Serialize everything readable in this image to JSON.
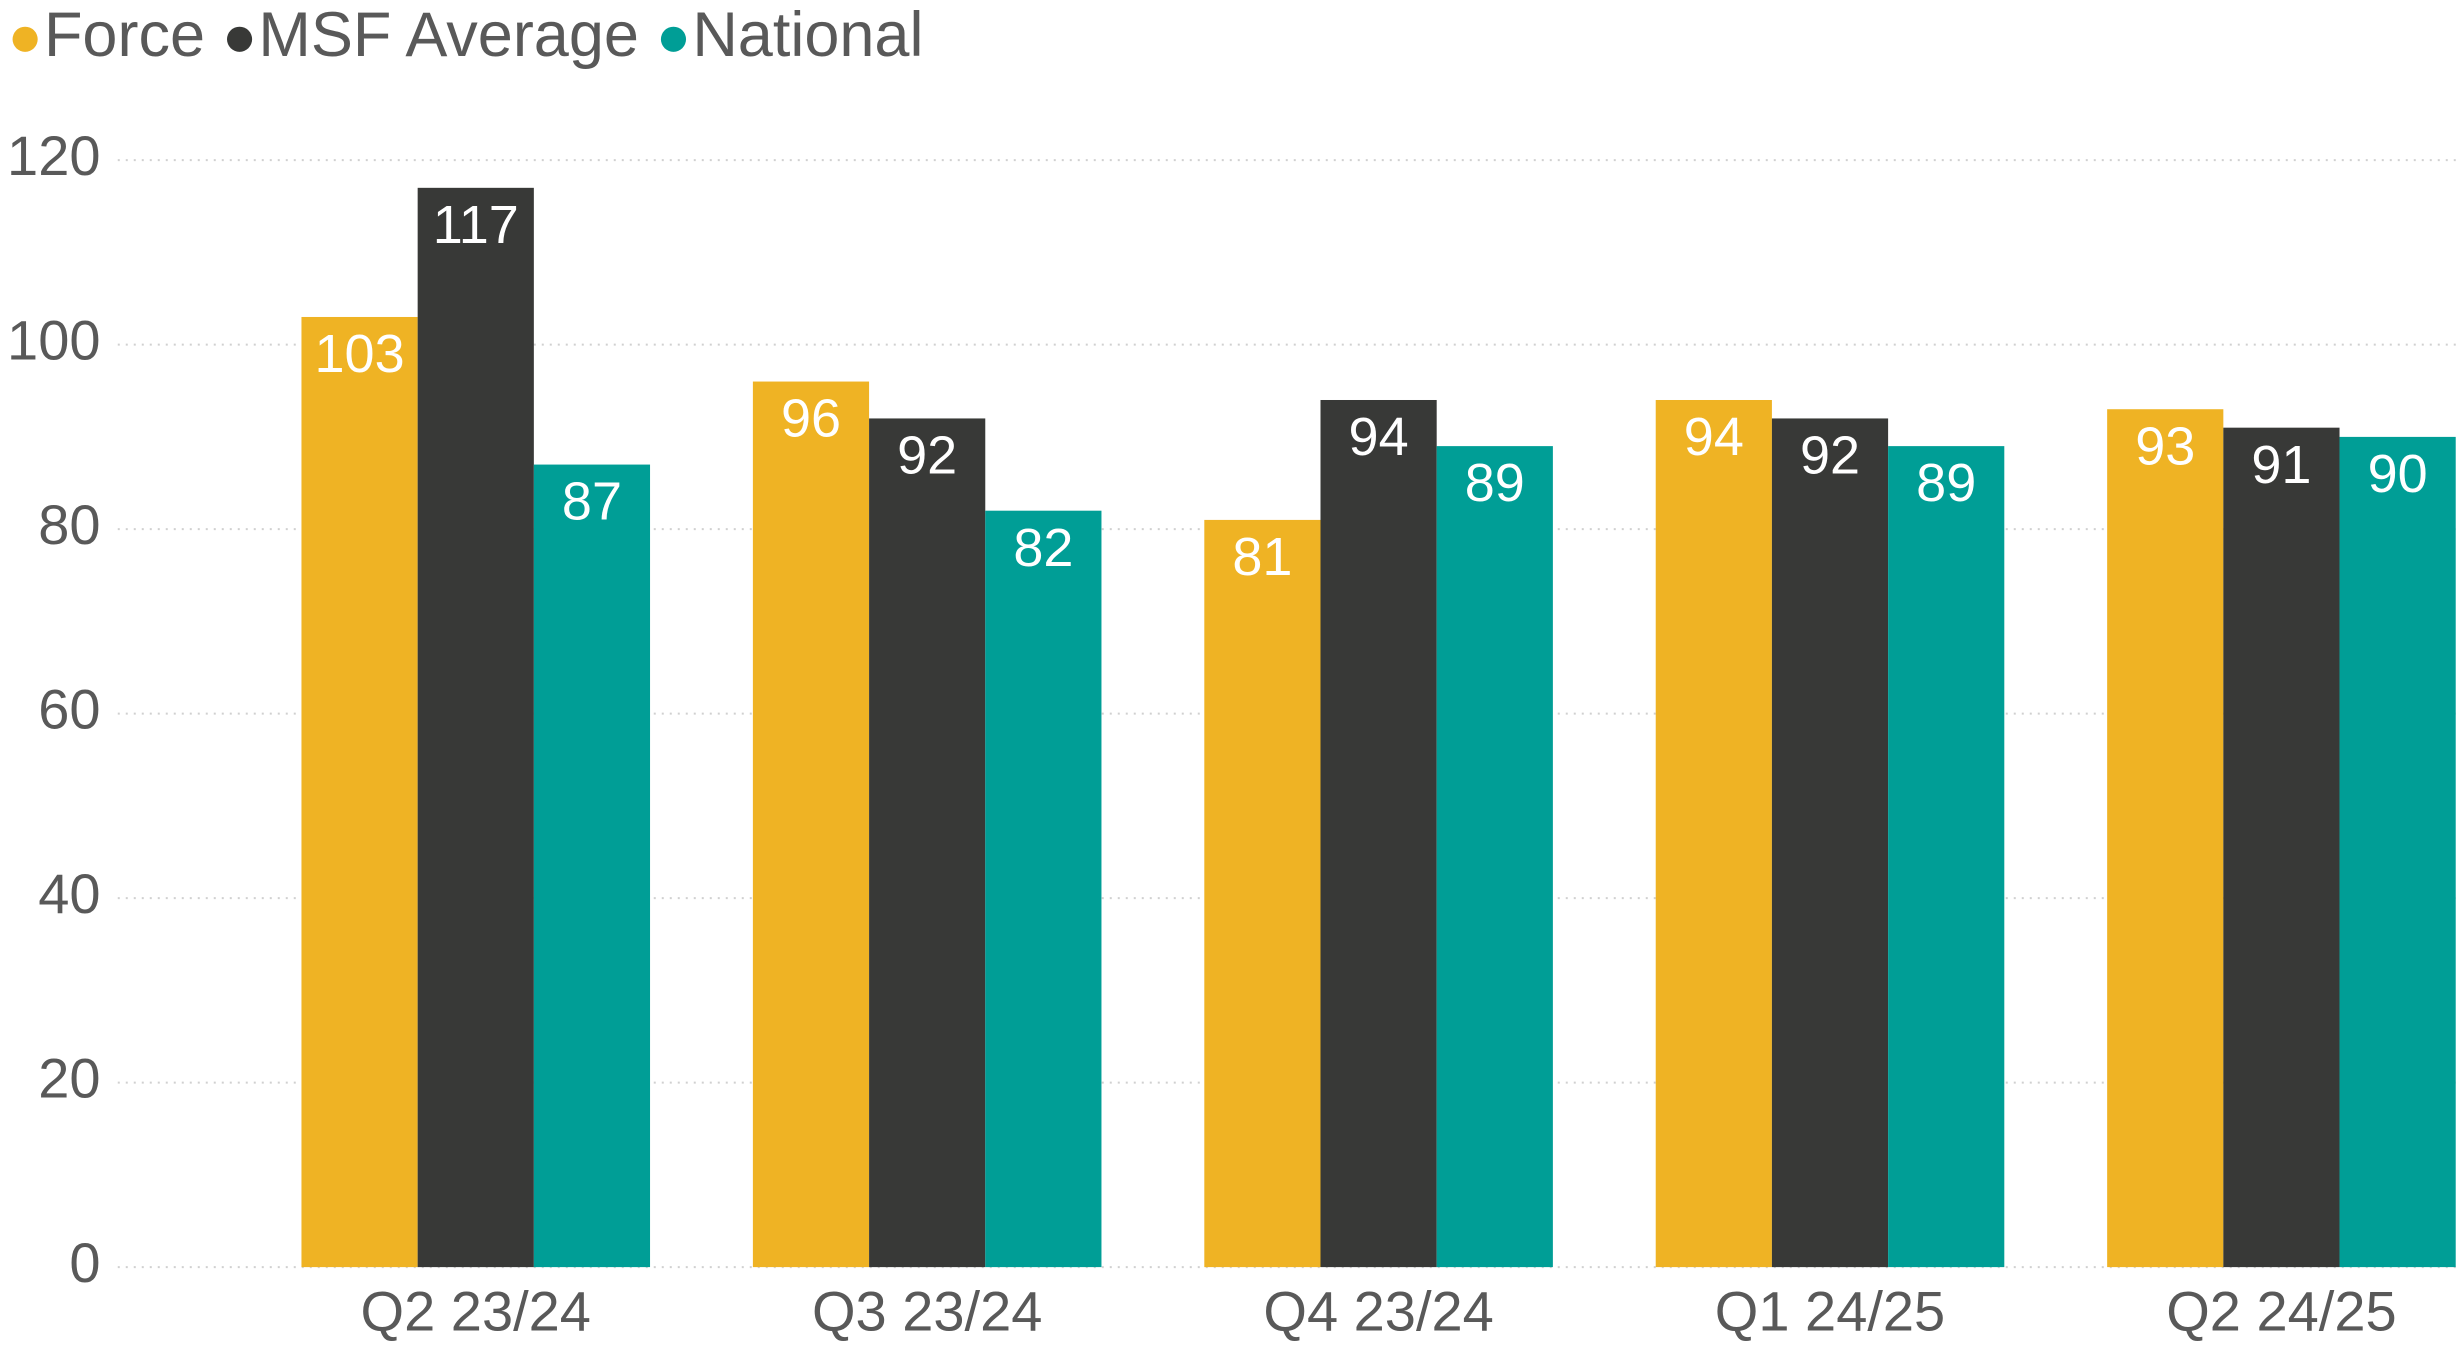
{
  "chart_data": {
    "type": "bar",
    "categories": [
      "Q2 23/24",
      "Q3 23/24",
      "Q4 23/24",
      "Q1 24/25",
      "Q2 24/25"
    ],
    "series": [
      {
        "name": "Force",
        "color": "#efb324",
        "values": [
          103,
          96,
          81,
          94,
          93
        ]
      },
      {
        "name": "MSF Average",
        "color": "#383937",
        "values": [
          117,
          92,
          94,
          92,
          91
        ]
      },
      {
        "name": "National",
        "color": "#009e96",
        "values": [
          87,
          82,
          89,
          89,
          90
        ]
      }
    ],
    "ylim": [
      0,
      120
    ],
    "yticks": [
      0,
      20,
      40,
      60,
      80,
      100,
      120
    ],
    "grid": true,
    "legend": "top-left"
  }
}
